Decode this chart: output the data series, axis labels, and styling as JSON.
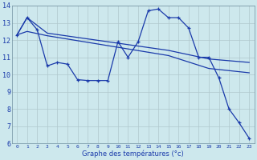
{
  "xlabel": "Graphe des températures (°c)",
  "background_color": "#cde8ed",
  "grid_color": "#b0c8cc",
  "line_color": "#1a3aaa",
  "xlim": [
    -0.5,
    23.5
  ],
  "ylim": [
    6,
    14
  ],
  "yticks": [
    6,
    7,
    8,
    9,
    10,
    11,
    12,
    13,
    14
  ],
  "xticks": [
    0,
    1,
    2,
    3,
    4,
    5,
    6,
    7,
    8,
    9,
    10,
    11,
    12,
    13,
    14,
    15,
    16,
    17,
    18,
    19,
    20,
    21,
    22,
    23
  ],
  "series1_x": [
    0,
    1,
    2,
    3,
    4,
    5,
    6,
    7,
    8,
    9,
    10,
    11,
    12,
    13,
    14,
    15,
    16,
    17,
    18,
    19,
    20,
    21,
    22,
    23
  ],
  "series1_y": [
    12.3,
    13.3,
    12.6,
    10.5,
    10.7,
    10.6,
    9.7,
    9.65,
    9.65,
    9.65,
    11.9,
    11.0,
    11.9,
    13.7,
    13.8,
    13.3,
    13.3,
    12.7,
    11.0,
    11.0,
    9.8,
    8.0,
    7.2,
    6.3
  ],
  "series2_x": [
    0,
    1,
    3,
    15,
    19,
    23
  ],
  "series2_y": [
    12.3,
    13.3,
    12.4,
    11.4,
    10.9,
    10.7
  ],
  "series3_x": [
    0,
    1,
    3,
    15,
    19,
    23
  ],
  "series3_y": [
    12.3,
    12.5,
    12.25,
    11.1,
    10.35,
    10.1
  ]
}
